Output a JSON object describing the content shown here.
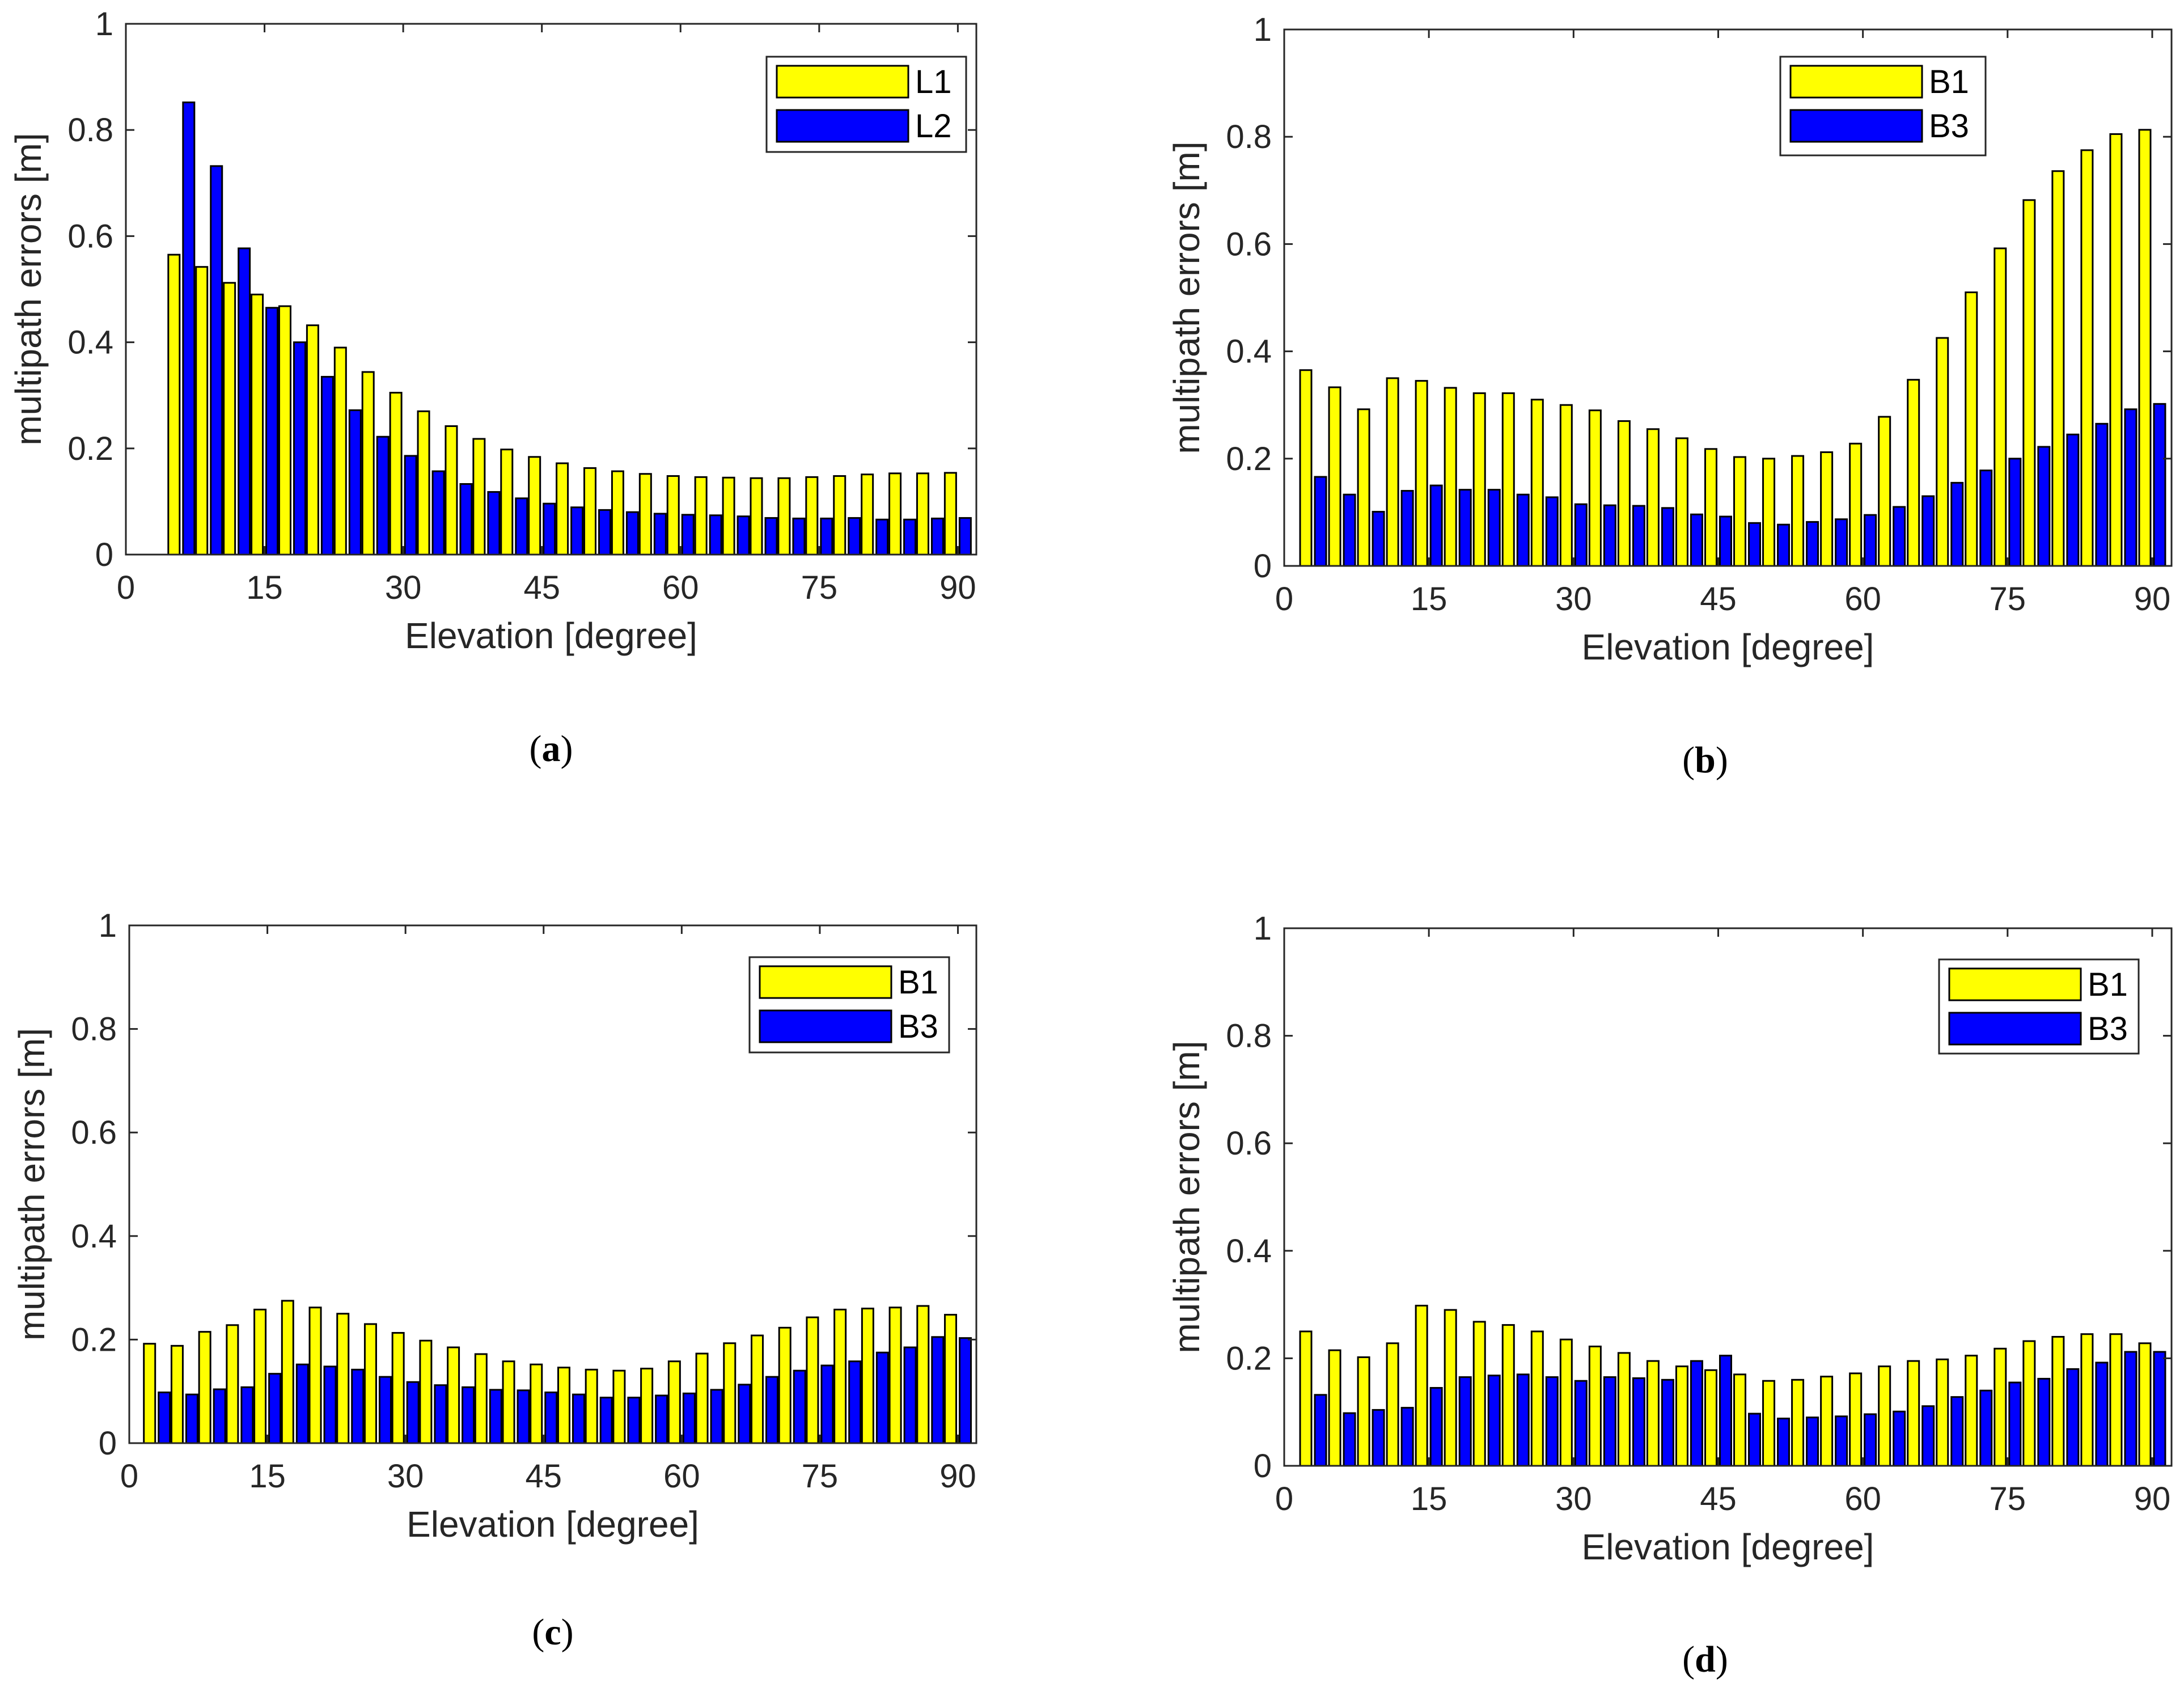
{
  "chart_data": [
    {
      "type": "bar",
      "panel_label": "a",
      "xlabel": "Elevation [degree]",
      "ylabel": "multipath errors [m]",
      "xlim": [
        0,
        92
      ],
      "ylim": [
        0,
        1
      ],
      "xticks": [
        "0",
        "15",
        "30",
        "45",
        "60",
        "75",
        "90"
      ],
      "yticks": [
        "0",
        "0.2",
        "0.4",
        "0.6",
        "0.8",
        "1"
      ],
      "legend_position": "top-right",
      "x": [
        6,
        9,
        12,
        15,
        18,
        21,
        24,
        27,
        30,
        33,
        36,
        39,
        42,
        45,
        48,
        51,
        54,
        57,
        60,
        63,
        66,
        69,
        72,
        75,
        78,
        81,
        84,
        87,
        90
      ],
      "series": [
        {
          "name": "L1",
          "color": "#ffff00",
          "values": [
            0.565,
            0.542,
            0.512,
            0.49,
            0.468,
            0.432,
            0.39,
            0.344,
            0.305,
            0.27,
            0.242,
            0.218,
            0.198,
            0.184,
            0.172,
            0.163,
            0.157,
            0.152,
            0.148,
            0.146,
            0.145,
            0.144,
            0.144,
            0.146,
            0.148,
            0.151,
            0.153,
            0.153,
            0.154
          ]
        },
        {
          "name": "L2",
          "color": "#0000ff",
          "values": [
            0.852,
            0.732,
            0.577,
            0.465,
            0.4,
            0.335,
            0.272,
            0.222,
            0.186,
            0.157,
            0.133,
            0.118,
            0.106,
            0.096,
            0.089,
            0.084,
            0.08,
            0.077,
            0.075,
            0.074,
            0.072,
            0.069,
            0.068,
            0.068,
            0.069,
            0.066,
            0.066,
            0.068,
            0.069
          ]
        }
      ]
    },
    {
      "type": "bar",
      "panel_label": "b",
      "xlabel": "Elevation [degree]",
      "ylabel": "multipath errors [m]",
      "xlim": [
        0,
        92
      ],
      "ylim": [
        0,
        1
      ],
      "xticks": [
        "0",
        "15",
        "30",
        "45",
        "60",
        "75",
        "90"
      ],
      "yticks": [
        "0",
        "0.2",
        "0.4",
        "0.6",
        "0.8",
        "1"
      ],
      "legend_position": "top-right",
      "x": [
        3,
        6,
        9,
        12,
        15,
        18,
        21,
        24,
        27,
        30,
        33,
        36,
        39,
        42,
        45,
        48,
        51,
        54,
        57,
        60,
        63,
        66,
        69,
        72,
        75,
        78,
        81,
        84,
        87,
        90
      ],
      "series": [
        {
          "name": "B1",
          "color": "#ffff00",
          "values": [
            0.365,
            0.333,
            0.292,
            0.35,
            0.345,
            0.332,
            0.322,
            0.322,
            0.31,
            0.3,
            0.29,
            0.27,
            0.255,
            0.238,
            0.218,
            0.203,
            0.2,
            0.205,
            0.212,
            0.228,
            0.278,
            0.347,
            0.425,
            0.51,
            0.592,
            0.682,
            0.736,
            0.775,
            0.805,
            0.813
          ]
        },
        {
          "name": "B3",
          "color": "#0000ff",
          "values": [
            0.166,
            0.133,
            0.101,
            0.14,
            0.15,
            0.142,
            0.142,
            0.133,
            0.128,
            0.115,
            0.113,
            0.112,
            0.108,
            0.096,
            0.092,
            0.08,
            0.077,
            0.082,
            0.087,
            0.095,
            0.11,
            0.13,
            0.155,
            0.178,
            0.2,
            0.222,
            0.245,
            0.265,
            0.292,
            0.302
          ]
        }
      ]
    },
    {
      "type": "bar",
      "panel_label": "c",
      "xlabel": "Elevation [degree]",
      "ylabel": "multipath errors [m]",
      "xlim": [
        0,
        92
      ],
      "ylim": [
        0,
        1
      ],
      "xticks": [
        "0",
        "15",
        "30",
        "45",
        "60",
        "75",
        "90"
      ],
      "yticks": [
        "0",
        "0.2",
        "0.4",
        "0.6",
        "0.8",
        "1"
      ],
      "legend_position": "top-right",
      "x": [
        3,
        6,
        9,
        12,
        15,
        18,
        21,
        24,
        27,
        30,
        33,
        36,
        39,
        42,
        45,
        48,
        51,
        54,
        57,
        60,
        63,
        66,
        69,
        72,
        75,
        78,
        81,
        84,
        87,
        90
      ],
      "series": [
        {
          "name": "B1",
          "color": "#ffff00",
          "values": [
            0.192,
            0.188,
            0.215,
            0.228,
            0.258,
            0.275,
            0.262,
            0.25,
            0.23,
            0.213,
            0.198,
            0.185,
            0.172,
            0.158,
            0.152,
            0.146,
            0.142,
            0.14,
            0.144,
            0.158,
            0.173,
            0.193,
            0.208,
            0.223,
            0.243,
            0.258,
            0.26,
            0.262,
            0.265,
            0.248
          ]
        },
        {
          "name": "B3",
          "color": "#0000ff",
          "values": [
            0.098,
            0.094,
            0.104,
            0.108,
            0.134,
            0.152,
            0.148,
            0.142,
            0.128,
            0.118,
            0.112,
            0.108,
            0.103,
            0.102,
            0.098,
            0.094,
            0.088,
            0.088,
            0.092,
            0.096,
            0.103,
            0.113,
            0.128,
            0.14,
            0.15,
            0.158,
            0.175,
            0.185,
            0.205,
            0.203
          ]
        }
      ]
    },
    {
      "type": "bar",
      "panel_label": "d",
      "xlabel": "Elevation [degree]",
      "ylabel": "multipath errors [m]",
      "xlim": [
        0,
        92
      ],
      "ylim": [
        0,
        1
      ],
      "xticks": [
        "0",
        "15",
        "30",
        "45",
        "60",
        "75",
        "90"
      ],
      "yticks": [
        "0",
        "0.2",
        "0.4",
        "0.6",
        "0.8",
        "1"
      ],
      "legend_position": "top-right",
      "x": [
        3,
        6,
        9,
        12,
        15,
        18,
        21,
        24,
        27,
        30,
        33,
        36,
        39,
        42,
        45,
        48,
        51,
        54,
        57,
        60,
        63,
        66,
        69,
        72,
        75,
        78,
        81,
        84,
        87,
        90
      ],
      "series": [
        {
          "name": "B1",
          "color": "#ffff00",
          "values": [
            0.25,
            0.215,
            0.202,
            0.228,
            0.298,
            0.29,
            0.268,
            0.262,
            0.25,
            0.235,
            0.222,
            0.21,
            0.195,
            0.185,
            0.178,
            0.17,
            0.158,
            0.16,
            0.166,
            0.172,
            0.185,
            0.195,
            0.198,
            0.205,
            0.218,
            0.232,
            0.24,
            0.245,
            0.245,
            0.228
          ]
        },
        {
          "name": "B3",
          "color": "#0000ff",
          "values": [
            0.132,
            0.098,
            0.104,
            0.108,
            0.145,
            0.165,
            0.168,
            0.17,
            0.165,
            0.158,
            0.165,
            0.163,
            0.16,
            0.195,
            0.205,
            0.097,
            0.088,
            0.09,
            0.092,
            0.096,
            0.101,
            0.111,
            0.128,
            0.14,
            0.155,
            0.162,
            0.18,
            0.192,
            0.212,
            0.212
          ]
        }
      ]
    }
  ]
}
